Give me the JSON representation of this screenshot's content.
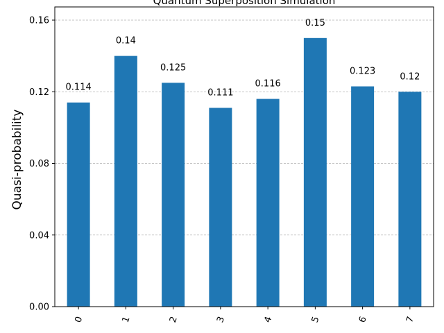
{
  "chart_data": {
    "type": "bar",
    "title": "Quantum Superposition Simulation",
    "xlabel": "",
    "ylabel": "Quasi-probability",
    "categories": [
      "0",
      "1",
      "2",
      "3",
      "4",
      "5",
      "6",
      "7"
    ],
    "values": [
      0.114,
      0.14,
      0.125,
      0.111,
      0.116,
      0.15,
      0.123,
      0.12
    ],
    "data_labels": [
      "0.114",
      "0.14",
      "0.125",
      "0.111",
      "0.116",
      "0.15",
      "0.123",
      "0.12"
    ],
    "y_ticks": [
      "0.00",
      "0.04",
      "0.08",
      "0.12",
      "0.16"
    ],
    "ylim": [
      0,
      0.16
    ],
    "grid": "horizontal dashed",
    "bar_color": "#1f77b4",
    "grid_color": "#b0b0b0"
  }
}
